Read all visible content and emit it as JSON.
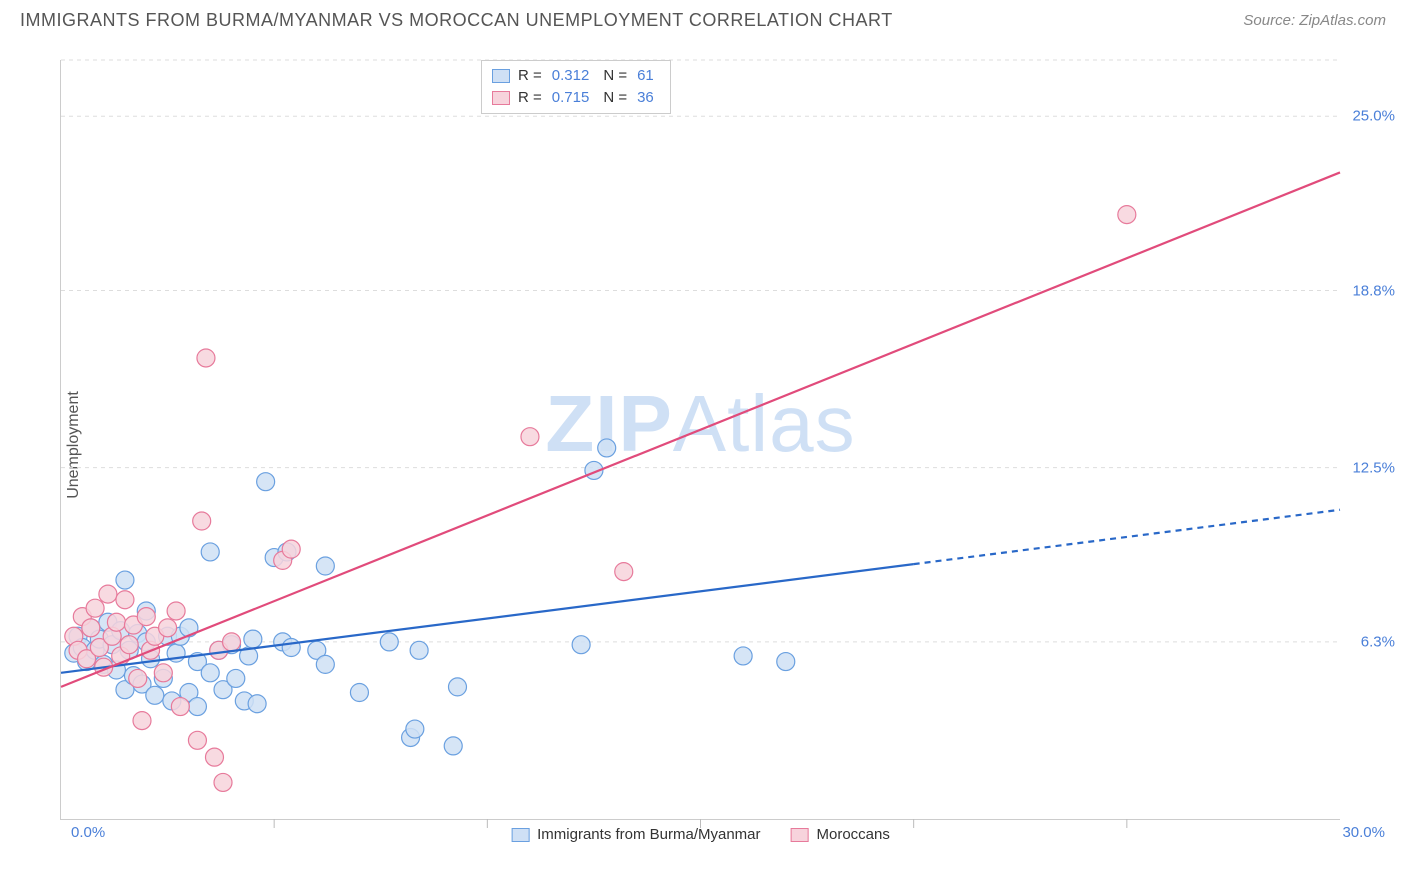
{
  "header": {
    "title": "IMMIGRANTS FROM BURMA/MYANMAR VS MOROCCAN UNEMPLOYMENT CORRELATION CHART",
    "source_prefix": "Source: ",
    "source_name": "ZipAtlas.com"
  },
  "chart": {
    "type": "scatter",
    "ylabel": "Unemployment",
    "xlim": [
      0,
      30
    ],
    "ylim": [
      0,
      27
    ],
    "xticks": [
      0,
      5,
      10,
      15,
      20,
      25,
      30
    ],
    "yticks": [
      {
        "v": 6.3,
        "label": "6.3%"
      },
      {
        "v": 12.5,
        "label": "12.5%"
      },
      {
        "v": 18.8,
        "label": "18.8%"
      },
      {
        "v": 25.0,
        "label": "25.0%"
      }
    ],
    "xaxis_min_label": "0.0%",
    "xaxis_max_label": "30.0%",
    "background_color": "#ffffff",
    "grid_color": "#dddddd",
    "axis_color": "#cccccc",
    "tick_text_color": "#4a7fd8",
    "marker_radius": 9,
    "marker_stroke_width": 1.2,
    "line_width": 2.2,
    "watermark": {
      "bold": "ZIP",
      "light": "Atlas",
      "color": "#cfe0f5"
    }
  },
  "series": [
    {
      "name": "Immigrants from Burma/Myanmar",
      "short": "burma",
      "fill": "#cfe0f5",
      "stroke": "#6aa0e0",
      "line_color": "#2968c8",
      "r_label": "R =",
      "r_value": "0.312",
      "n_label": "N =",
      "n_value": "61",
      "regression": {
        "x1": 0,
        "y1": 5.2,
        "x2": 30,
        "y2": 11.0,
        "solid_until_x": 20,
        "dash": "6 5"
      },
      "points": [
        [
          0.3,
          5.9
        ],
        [
          0.4,
          6.5
        ],
        [
          0.5,
          6.1
        ],
        [
          0.6,
          5.6
        ],
        [
          0.7,
          6.8
        ],
        [
          0.8,
          6.0
        ],
        [
          0.9,
          6.4
        ],
        [
          1.0,
          5.5
        ],
        [
          1.1,
          7.0
        ],
        [
          1.2,
          6.2
        ],
        [
          1.3,
          5.3
        ],
        [
          1.4,
          6.7
        ],
        [
          1.5,
          4.6
        ],
        [
          1.5,
          8.5
        ],
        [
          1.6,
          6.0
        ],
        [
          1.7,
          5.1
        ],
        [
          1.8,
          6.6
        ],
        [
          1.9,
          4.8
        ],
        [
          2.0,
          6.3
        ],
        [
          2.0,
          7.4
        ],
        [
          2.1,
          5.7
        ],
        [
          2.2,
          4.4
        ],
        [
          2.4,
          5.0
        ],
        [
          2.5,
          6.5
        ],
        [
          2.6,
          4.2
        ],
        [
          2.7,
          5.9
        ],
        [
          2.8,
          6.5
        ],
        [
          3.0,
          4.5
        ],
        [
          3.0,
          6.8
        ],
        [
          3.2,
          4.0
        ],
        [
          3.2,
          5.6
        ],
        [
          3.5,
          9.5
        ],
        [
          3.5,
          5.2
        ],
        [
          3.7,
          6.0
        ],
        [
          3.8,
          4.6
        ],
        [
          4.0,
          6.2
        ],
        [
          4.1,
          5.0
        ],
        [
          4.3,
          4.2
        ],
        [
          4.4,
          5.8
        ],
        [
          4.5,
          6.4
        ],
        [
          4.6,
          4.1
        ],
        [
          4.8,
          12.0
        ],
        [
          5.0,
          9.3
        ],
        [
          5.2,
          6.3
        ],
        [
          5.3,
          9.5
        ],
        [
          5.4,
          6.1
        ],
        [
          6.0,
          6.0
        ],
        [
          6.2,
          5.5
        ],
        [
          6.2,
          9.0
        ],
        [
          7.0,
          4.5
        ],
        [
          7.7,
          6.3
        ],
        [
          8.2,
          2.9
        ],
        [
          8.3,
          3.2
        ],
        [
          8.4,
          6.0
        ],
        [
          9.2,
          2.6
        ],
        [
          9.3,
          4.7
        ],
        [
          12.2,
          6.2
        ],
        [
          12.5,
          12.4
        ],
        [
          12.8,
          13.2
        ],
        [
          16.0,
          5.8
        ],
        [
          17.0,
          5.6
        ]
      ]
    },
    {
      "name": "Moroccans",
      "short": "moroccans",
      "fill": "#f7d3dc",
      "stroke": "#e77a9b",
      "line_color": "#e14b7b",
      "r_label": "R =",
      "r_value": "0.715",
      "n_label": "N =",
      "n_value": "36",
      "regression": {
        "x1": 0,
        "y1": 4.7,
        "x2": 30,
        "y2": 23.0,
        "solid_until_x": 30,
        "dash": null
      },
      "points": [
        [
          0.3,
          6.5
        ],
        [
          0.4,
          6.0
        ],
        [
          0.5,
          7.2
        ],
        [
          0.6,
          5.7
        ],
        [
          0.7,
          6.8
        ],
        [
          0.8,
          7.5
        ],
        [
          0.9,
          6.1
        ],
        [
          1.0,
          5.4
        ],
        [
          1.1,
          8.0
        ],
        [
          1.2,
          6.5
        ],
        [
          1.3,
          7.0
        ],
        [
          1.4,
          5.8
        ],
        [
          1.5,
          7.8
        ],
        [
          1.6,
          6.2
        ],
        [
          1.7,
          6.9
        ],
        [
          1.8,
          5.0
        ],
        [
          1.9,
          3.5
        ],
        [
          2.0,
          7.2
        ],
        [
          2.1,
          6.0
        ],
        [
          2.2,
          6.5
        ],
        [
          2.4,
          5.2
        ],
        [
          2.5,
          6.8
        ],
        [
          2.7,
          7.4
        ],
        [
          2.8,
          4.0
        ],
        [
          3.2,
          2.8
        ],
        [
          3.3,
          10.6
        ],
        [
          3.4,
          16.4
        ],
        [
          3.6,
          2.2
        ],
        [
          3.7,
          6.0
        ],
        [
          3.8,
          1.3
        ],
        [
          4.0,
          6.3
        ],
        [
          5.2,
          9.2
        ],
        [
          5.4,
          9.6
        ],
        [
          11.0,
          13.6
        ],
        [
          13.2,
          8.8
        ],
        [
          25.0,
          21.5
        ]
      ]
    }
  ],
  "legend_bottom": {
    "items": [
      {
        "series": 0
      },
      {
        "series": 1
      }
    ]
  }
}
